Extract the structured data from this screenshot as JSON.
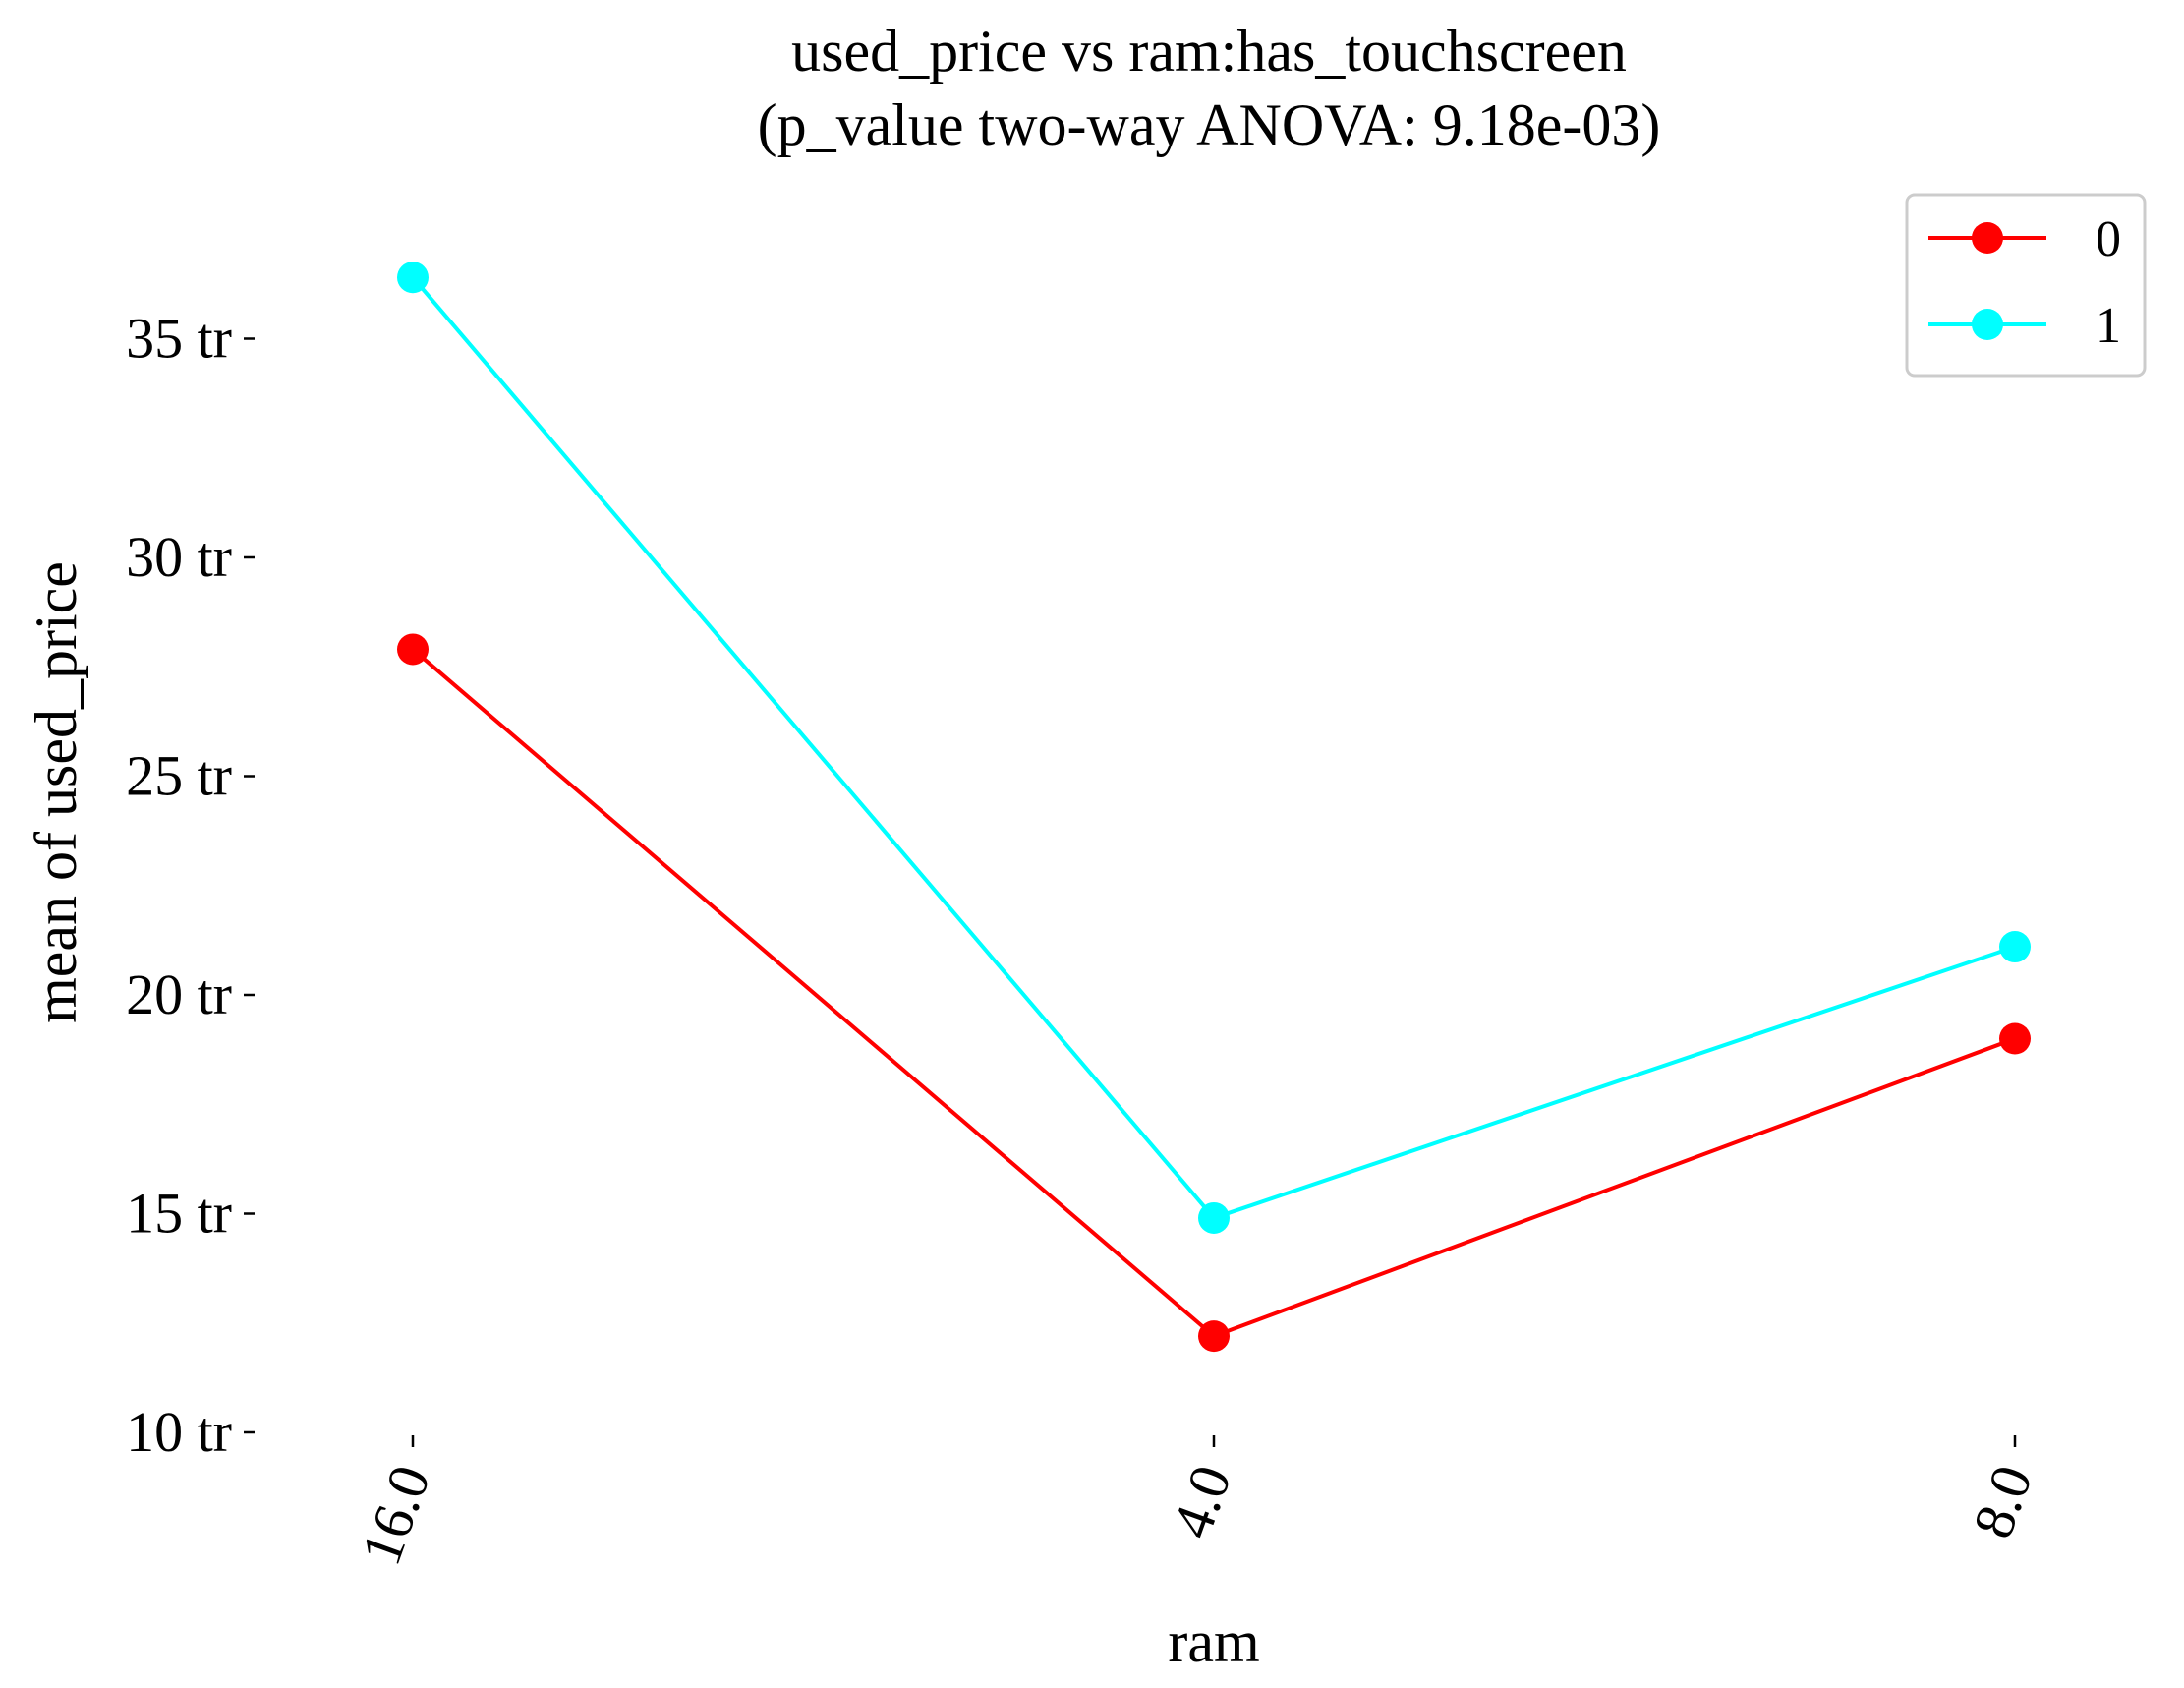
{
  "chart_data": {
    "type": "line",
    "title": "used_price vs ram:has_touchscreen",
    "subtitle": "(p_value two-way ANOVA: 9.18e-03)",
    "xlabel": "ram",
    "ylabel": "mean of used_price",
    "categories": [
      "16.0",
      "4.0",
      "8.0"
    ],
    "yticks": [
      10,
      15,
      20,
      25,
      30,
      35
    ],
    "ytick_labels": [
      "10 tr",
      "15 tr",
      "20 tr",
      "25 tr",
      "30 tr",
      "35 tr"
    ],
    "ylim": [
      10,
      36.5
    ],
    "grid": false,
    "legend_position": "top-right",
    "series": [
      {
        "name": "0",
        "color": "#ff0000",
        "values": [
          27.9,
          12.2,
          19.0
        ]
      },
      {
        "name": "1",
        "color": "#00ffff",
        "values": [
          36.4,
          14.9,
          21.1
        ]
      }
    ]
  }
}
